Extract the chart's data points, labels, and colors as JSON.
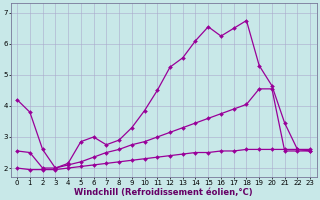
{
  "background_color": "#c8e8e8",
  "grid_color": "#aaaacc",
  "line_color": "#990099",
  "marker": "D",
  "marker_size": 2,
  "line_width": 0.9,
  "xlabel": "Windchill (Refroidissement éolien,°C)",
  "xlabel_fontsize": 6,
  "tick_fontsize": 5,
  "xlim": [
    -0.5,
    23.5
  ],
  "ylim": [
    1.7,
    7.3
  ],
  "yticks": [
    2,
    3,
    4,
    5,
    6,
    7
  ],
  "xticks": [
    0,
    1,
    2,
    3,
    4,
    5,
    6,
    7,
    8,
    9,
    10,
    11,
    12,
    13,
    14,
    15,
    16,
    17,
    18,
    19,
    20,
    21,
    22,
    23
  ],
  "series1_x": [
    0,
    1,
    2,
    3,
    4,
    5,
    6,
    7,
    8,
    9,
    10,
    11,
    12,
    13,
    14,
    15,
    16,
    17,
    18,
    19,
    20,
    21,
    22,
    23
  ],
  "series1_y": [
    4.2,
    3.8,
    2.6,
    2.0,
    2.15,
    2.85,
    3.0,
    2.75,
    2.9,
    3.3,
    3.85,
    4.5,
    5.25,
    5.55,
    6.1,
    6.55,
    6.25,
    6.5,
    6.75,
    5.3,
    4.65,
    3.45,
    2.6,
    2.55
  ],
  "series2_x": [
    0,
    1,
    2,
    3,
    4,
    5,
    6,
    7,
    8,
    9,
    10,
    11,
    12,
    13,
    14,
    15,
    16,
    17,
    18,
    19,
    20,
    21,
    22,
    23
  ],
  "series2_y": [
    2.55,
    2.5,
    2.0,
    2.0,
    2.1,
    2.2,
    2.35,
    2.5,
    2.6,
    2.75,
    2.85,
    3.0,
    3.15,
    3.3,
    3.45,
    3.6,
    3.75,
    3.9,
    4.05,
    4.55,
    4.55,
    2.55,
    2.55,
    2.55
  ],
  "series3_x": [
    0,
    1,
    2,
    3,
    4,
    5,
    6,
    7,
    8,
    9,
    10,
    11,
    12,
    13,
    14,
    15,
    16,
    17,
    18,
    19,
    20,
    21,
    22,
    23
  ],
  "series3_y": [
    2.0,
    1.95,
    1.95,
    1.95,
    2.0,
    2.05,
    2.1,
    2.15,
    2.2,
    2.25,
    2.3,
    2.35,
    2.4,
    2.45,
    2.5,
    2.5,
    2.55,
    2.55,
    2.6,
    2.6,
    2.6,
    2.6,
    2.6,
    2.6
  ]
}
